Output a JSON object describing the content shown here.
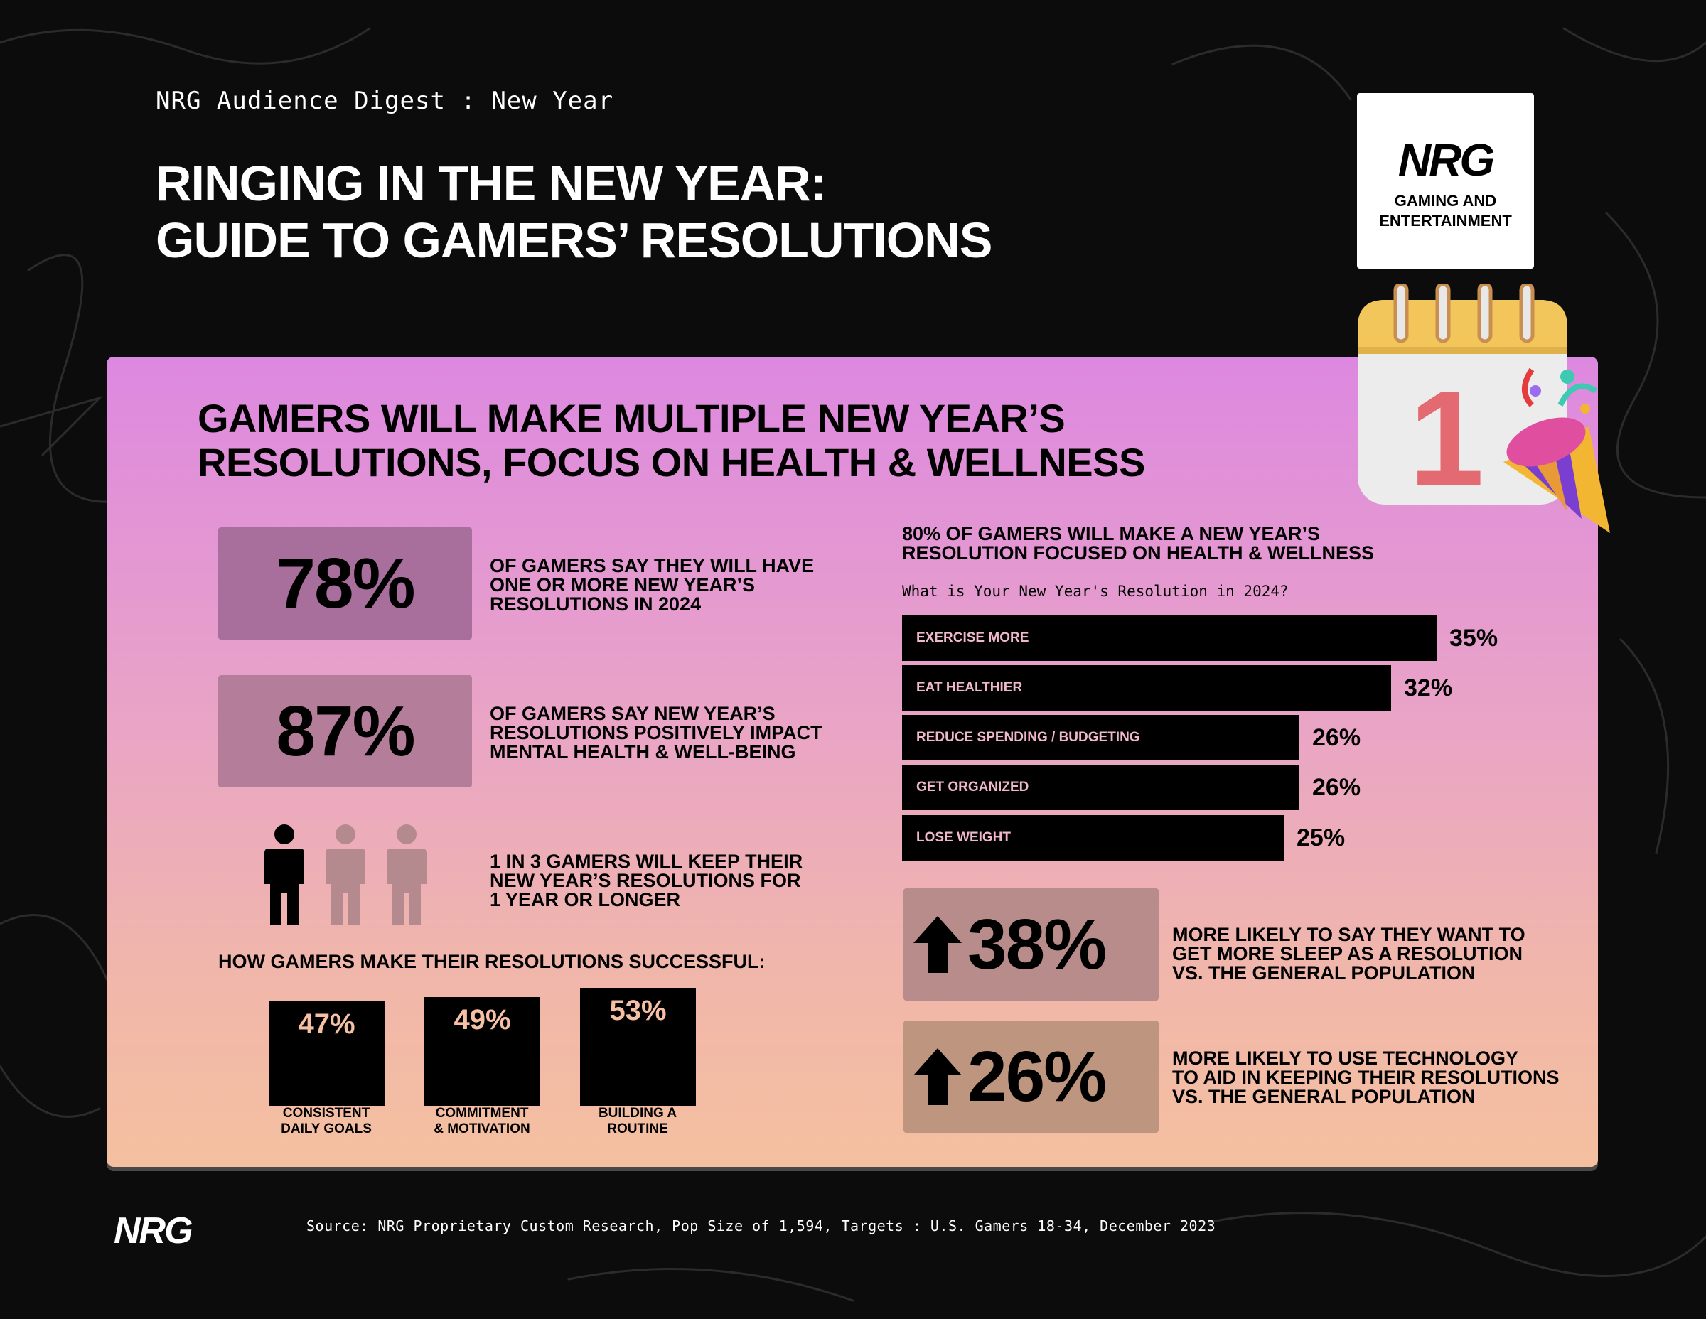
{
  "header": {
    "digest": "NRG Audience Digest : New Year",
    "title_line1": "RINGING IN THE NEW YEAR:",
    "title_line2": "GUIDE TO GAMERS’ RESOLUTIONS"
  },
  "logo": {
    "brand": "NRG",
    "sub_line1": "GAMING AND",
    "sub_line2": "ENTERTAINMENT"
  },
  "calendar": {
    "day": "1"
  },
  "panel": {
    "title_line1": "GAMERS WILL MAKE MULTIPLE NEW YEAR’S",
    "title_line2": "RESOLUTIONS, FOCUS ON HEALTH & WELLNESS"
  },
  "stats": [
    {
      "value": "78%",
      "line1": "OF GAMERS SAY THEY WILL HAVE",
      "line2": "ONE OR MORE NEW YEAR’S",
      "line3": "RESOLUTIONS IN 2024"
    },
    {
      "value": "87%",
      "line1": "OF GAMERS SAY NEW YEAR’S",
      "line2": "RESOLUTIONS POSITIVELY IMPACT",
      "line3": "MENTAL HEALTH & WELL-BEING"
    }
  ],
  "ratio": {
    "highlighted": 1,
    "total": 3,
    "line1": "1 IN 3 GAMERS WILL KEEP THEIR",
    "line2": "NEW YEAR’S RESOLUTIONS FOR",
    "line3": "1 YEAR OR LONGER"
  },
  "how": {
    "title": "HOW GAMERS MAKE THEIR RESOLUTIONS SUCCESSFUL:",
    "items": [
      {
        "value": "47%",
        "pct": 47,
        "line1": "CONSISTENT",
        "line2": "DAILY GOALS"
      },
      {
        "value": "49%",
        "pct": 49,
        "line1": "COMMITMENT",
        "line2": "& MOTIVATION"
      },
      {
        "value": "53%",
        "pct": 53,
        "line1": "BUILDING A",
        "line2": "ROUTINE"
      }
    ]
  },
  "chart": {
    "headline_line1": "80% OF GAMERS WILL MAKE A NEW YEAR’S",
    "headline_line2": "RESOLUTION FOCUSED ON HEALTH & WELLNESS",
    "question": "What is Your New Year's Resolution in 2024?",
    "bars": [
      {
        "label": "EXERCISE MORE",
        "value": 35,
        "display": "35%"
      },
      {
        "label": "EAT HEALTHIER",
        "value": 32,
        "display": "32%"
      },
      {
        "label": "REDUCE SPENDING / BUDGETING",
        "value": 26,
        "display": "26%"
      },
      {
        "label": "GET ORGANIZED",
        "value": 26,
        "display": "26%"
      },
      {
        "label": "LOSE WEIGHT",
        "value": 25,
        "display": "25%"
      }
    ]
  },
  "comparisons": [
    {
      "value": "38%",
      "line1": "MORE LIKELY TO SAY THEY WANT TO",
      "line2": "GET MORE SLEEP AS A RESOLUTION",
      "line3": "VS. THE GENERAL POPULATION"
    },
    {
      "value": "26%",
      "line1": "MORE LIKELY TO USE TECHNOLOGY",
      "line2": "TO AID IN KEEPING THEIR RESOLUTIONS",
      "line3": "VS. THE GENERAL POPULATION"
    }
  ],
  "footer": {
    "brand": "NRG",
    "source": "Source: NRG Proprietary Custom Research, Pop Size of 1,594, Targets : U.S. Gamers 18-34, December 2023"
  },
  "colors": {
    "stat_box_1": "#a86e9c",
    "stat_box_2": "#b47e9a",
    "up_box_1": "#b88c8a",
    "up_box_2": "#be9680",
    "person_active": "#000000",
    "person_muted": "#b58a8e"
  }
}
